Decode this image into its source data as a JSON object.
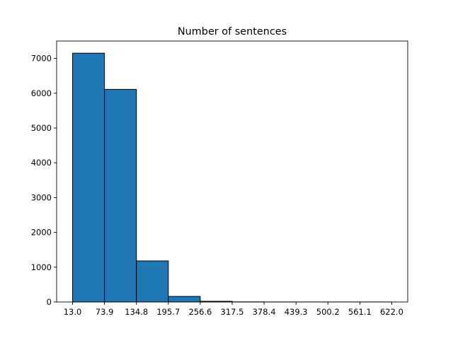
{
  "chart_data": {
    "type": "bar",
    "title": "Number of sentences",
    "xlabel": "",
    "ylabel": "",
    "bin_edges": [
      13.0,
      73.9,
      134.8,
      195.7,
      256.6,
      317.5,
      378.4,
      439.3,
      500.2,
      561.1,
      622.0
    ],
    "x_tick_labels": [
      "13.0",
      "73.9",
      "134.8",
      "195.7",
      "256.6",
      "317.5",
      "378.4",
      "439.3",
      "500.2",
      "561.1",
      "622.0"
    ],
    "values": [
      7150,
      6110,
      1180,
      160,
      20,
      4,
      2,
      1,
      1,
      1
    ],
    "y_ticks": [
      0,
      1000,
      2000,
      3000,
      4000,
      5000,
      6000,
      7000
    ],
    "y_tick_labels": [
      "0",
      "1000",
      "2000",
      "3000",
      "4000",
      "5000",
      "6000",
      "7000"
    ],
    "xlim": [
      -17.45,
      652.45
    ],
    "ylim": [
      0,
      7500
    ],
    "bar_color": "#1f77b4",
    "edge_color": "#000000",
    "grid": false,
    "legend": "none"
  }
}
